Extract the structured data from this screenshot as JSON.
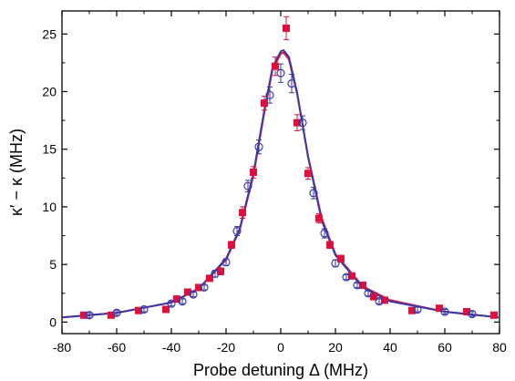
{
  "chart_data": {
    "type": "scatter",
    "title": "",
    "xlabel": "Probe detuning Δ (MHz)",
    "ylabel": "κ′ − κ (MHz)",
    "xlim": [
      -80,
      80
    ],
    "ylim": [
      -1,
      27
    ],
    "xticks": [
      -80,
      -60,
      -40,
      -20,
      0,
      20,
      40,
      60,
      80
    ],
    "yticks": [
      0,
      5,
      10,
      15,
      20,
      25
    ],
    "x_tick_labels": [
      "-80",
      "-60",
      "-40",
      "-20",
      "0",
      "20",
      "40",
      "60",
      "80"
    ],
    "y_tick_labels": [
      "0",
      "5",
      "10",
      "15",
      "20",
      "25"
    ],
    "grid": false,
    "legend": "none",
    "series": [
      {
        "kind": "scatter",
        "marker": "filled-square",
        "color": "#e0103c",
        "points": [
          {
            "x": -72,
            "y": 0.6,
            "err": 0.2
          },
          {
            "x": -62,
            "y": 0.6,
            "err": 0.2
          },
          {
            "x": -52,
            "y": 1.0,
            "err": 0.2
          },
          {
            "x": -42,
            "y": 1.1,
            "err": 0.2
          },
          {
            "x": -38,
            "y": 2.0,
            "err": 0.2
          },
          {
            "x": -34,
            "y": 2.6,
            "err": 0.2
          },
          {
            "x": -30,
            "y": 3.0,
            "err": 0.2
          },
          {
            "x": -26,
            "y": 3.8,
            "err": 0.2
          },
          {
            "x": -22,
            "y": 4.4,
            "err": 0.3
          },
          {
            "x": -18,
            "y": 6.7,
            "err": 0.3
          },
          {
            "x": -14,
            "y": 9.5,
            "err": 0.5
          },
          {
            "x": -10,
            "y": 13.0,
            "err": 0.5
          },
          {
            "x": -6,
            "y": 19.0,
            "err": 0.6
          },
          {
            "x": -2,
            "y": 22.2,
            "err": 0.8
          },
          {
            "x": 2,
            "y": 25.5,
            "err": 1.0
          },
          {
            "x": 6,
            "y": 17.3,
            "err": 0.7
          },
          {
            "x": 10,
            "y": 12.9,
            "err": 0.5
          },
          {
            "x": 14,
            "y": 9.0,
            "err": 0.4
          },
          {
            "x": 18,
            "y": 6.7,
            "err": 0.3
          },
          {
            "x": 22,
            "y": 5.5,
            "err": 0.3
          },
          {
            "x": 26,
            "y": 4.0,
            "err": 0.2
          },
          {
            "x": 30,
            "y": 3.2,
            "err": 0.2
          },
          {
            "x": 34,
            "y": 2.2,
            "err": 0.2
          },
          {
            "x": 38,
            "y": 1.9,
            "err": 0.2
          },
          {
            "x": 48,
            "y": 1.0,
            "err": 0.2
          },
          {
            "x": 58,
            "y": 1.2,
            "err": 0.2
          },
          {
            "x": 68,
            "y": 0.9,
            "err": 0.2
          },
          {
            "x": 78,
            "y": 0.6,
            "err": 0.2
          }
        ]
      },
      {
        "kind": "scatter",
        "marker": "open-circle",
        "color": "#3a3aa6",
        "points": [
          {
            "x": -70,
            "y": 0.6,
            "err": 0.2
          },
          {
            "x": -60,
            "y": 0.8,
            "err": 0.2
          },
          {
            "x": -50,
            "y": 1.1,
            "err": 0.2
          },
          {
            "x": -40,
            "y": 1.6,
            "err": 0.2
          },
          {
            "x": -36,
            "y": 1.8,
            "err": 0.2
          },
          {
            "x": -32,
            "y": 2.4,
            "err": 0.2
          },
          {
            "x": -28,
            "y": 3.0,
            "err": 0.2
          },
          {
            "x": -24,
            "y": 4.2,
            "err": 0.3
          },
          {
            "x": -20,
            "y": 5.2,
            "err": 0.3
          },
          {
            "x": -16,
            "y": 7.9,
            "err": 0.4
          },
          {
            "x": -12,
            "y": 11.8,
            "err": 0.5
          },
          {
            "x": -8,
            "y": 15.2,
            "err": 0.6
          },
          {
            "x": -4,
            "y": 19.7,
            "err": 0.7
          },
          {
            "x": 0,
            "y": 21.6,
            "err": 0.8
          },
          {
            "x": 4,
            "y": 20.7,
            "err": 0.8
          },
          {
            "x": 8,
            "y": 17.3,
            "err": 0.6
          },
          {
            "x": 12,
            "y": 11.2,
            "err": 0.5
          },
          {
            "x": 16,
            "y": 7.7,
            "err": 0.4
          },
          {
            "x": 20,
            "y": 5.1,
            "err": 0.3
          },
          {
            "x": 24,
            "y": 3.9,
            "err": 0.2
          },
          {
            "x": 28,
            "y": 3.2,
            "err": 0.2
          },
          {
            "x": 32,
            "y": 2.5,
            "err": 0.2
          },
          {
            "x": 36,
            "y": 1.8,
            "err": 0.2
          },
          {
            "x": 50,
            "y": 1.1,
            "err": 0.2
          },
          {
            "x": 60,
            "y": 0.9,
            "err": 0.2
          },
          {
            "x": 70,
            "y": 0.7,
            "err": 0.2
          }
        ]
      },
      {
        "kind": "line",
        "color": "#e0103c",
        "x": [
          -80,
          -60,
          -40,
          -30,
          -20,
          -15,
          -10,
          -6,
          -3,
          0,
          1,
          3,
          6,
          10,
          15,
          20,
          30,
          40,
          60,
          80
        ],
        "y": [
          0.4,
          0.8,
          1.7,
          2.9,
          5.4,
          8.0,
          12.7,
          18.2,
          21.9,
          23.3,
          23.4,
          22.8,
          19.8,
          14.4,
          9.0,
          5.9,
          3.1,
          1.9,
          0.9,
          0.4
        ]
      },
      {
        "kind": "line",
        "color": "#3a3aa6",
        "x": [
          -80,
          -60,
          -40,
          -30,
          -20,
          -15,
          -10,
          -6,
          -3,
          0,
          1,
          3,
          6,
          10,
          15,
          20,
          30,
          40,
          60,
          80
        ],
        "y": [
          0.4,
          0.8,
          1.7,
          2.9,
          5.5,
          8.1,
          12.9,
          18.4,
          22.1,
          23.5,
          23.6,
          23.0,
          19.9,
          14.3,
          8.8,
          5.8,
          3.0,
          1.8,
          0.9,
          0.4
        ]
      }
    ]
  }
}
